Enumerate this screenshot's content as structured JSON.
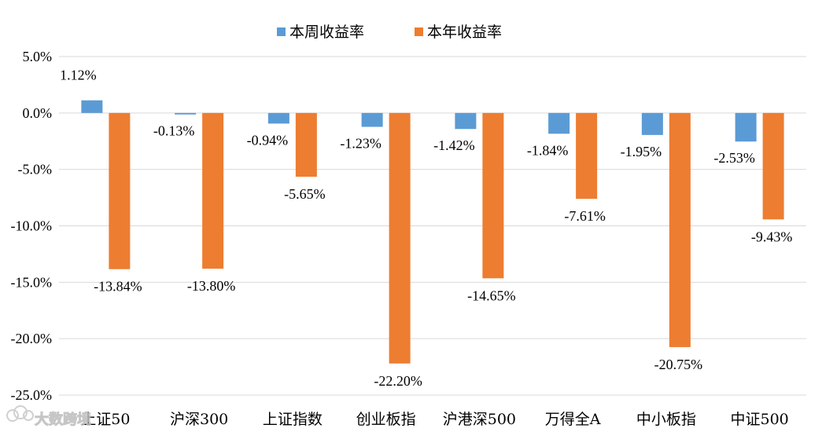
{
  "chart_data": {
    "type": "bar",
    "categories": [
      "上证50",
      "沪深300",
      "上证指数",
      "创业板指",
      "沪港深500",
      "万得全A",
      "中小板指",
      "中证500"
    ],
    "series": [
      {
        "name": "本周收益率",
        "color": "#5B9BD5",
        "values": [
          1.12,
          -0.13,
          -0.94,
          -1.23,
          -1.42,
          -1.84,
          -1.95,
          -2.53
        ],
        "labels": [
          "1.12%",
          "-0.13%",
          "-0.94%",
          "-1.23%",
          "-1.42%",
          "-1.84%",
          "-1.95%",
          "-2.53%"
        ]
      },
      {
        "name": "本年收益率",
        "color": "#ED7D31",
        "values": [
          -13.84,
          -13.8,
          -5.65,
          -22.2,
          -14.65,
          -7.61,
          -20.75,
          -9.43
        ],
        "labels": [
          "-13.84%",
          "-13.80%",
          "-5.65%",
          "-22.20%",
          "-14.65%",
          "-7.61%",
          "-20.75%",
          "-9.43%"
        ]
      }
    ],
    "y_ticks": [
      5,
      0,
      -5,
      -10,
      -15,
      -20,
      -25
    ],
    "y_tick_labels": [
      "5.0%",
      "0.0%",
      "-5.0%",
      "-10.0%",
      "-15.0%",
      "-20.0%",
      "-25.0%"
    ],
    "ylim": [
      -25,
      5
    ],
    "legend_position": "top-center",
    "grid": true,
    "title": "",
    "xlabel": "",
    "ylabel": ""
  },
  "watermark": {
    "text": "大数跨境",
    "icon": "cloud-logo-icon"
  }
}
